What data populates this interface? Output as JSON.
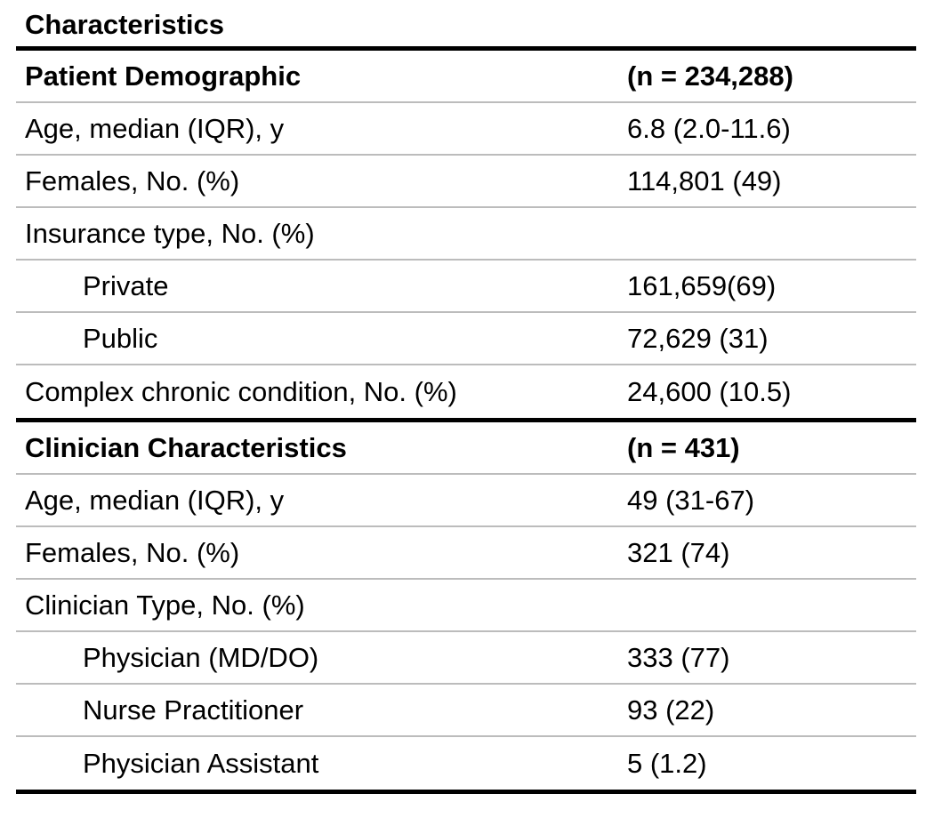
{
  "table": {
    "title": "Characteristics",
    "colors": {
      "text": "#000000",
      "background": "#ffffff",
      "row_divider": "#bcbcbc",
      "section_divider": "#000000"
    },
    "sections": [
      {
        "header": {
          "label": "Patient Demographic",
          "value": "(n = 234,288)"
        },
        "rows": [
          {
            "label": "Age, median (IQR), y",
            "value": "6.8 (2.0-11.6)",
            "indent": false
          },
          {
            "label": "Females, No. (%)",
            "value": "114,801 (49)",
            "indent": false
          },
          {
            "label": "Insurance type, No. (%)",
            "value": "",
            "indent": false
          },
          {
            "label": "Private",
            "value": "161,659(69)",
            "indent": true
          },
          {
            "label": "Public",
            "value": "72,629 (31)",
            "indent": true
          },
          {
            "label": "Complex chronic condition, No. (%)",
            "value": "24,600 (10.5)",
            "indent": false
          }
        ]
      },
      {
        "header": {
          "label": "Clinician Characteristics",
          "value": "(n = 431)"
        },
        "rows": [
          {
            "label": "Age, median (IQR), y",
            "value": "49 (31-67)",
            "indent": false
          },
          {
            "label": "Females, No. (%)",
            "value": "321 (74)",
            "indent": false
          },
          {
            "label": "Clinician Type, No. (%)",
            "value": "",
            "indent": false
          },
          {
            "label": "Physician (MD/DO)",
            "value": "333 (77)",
            "indent": true
          },
          {
            "label": "Nurse Practitioner",
            "value": "93 (22)",
            "indent": true
          },
          {
            "label": "Physician Assistant",
            "value": "5 (1.2)",
            "indent": true
          }
        ]
      }
    ]
  }
}
